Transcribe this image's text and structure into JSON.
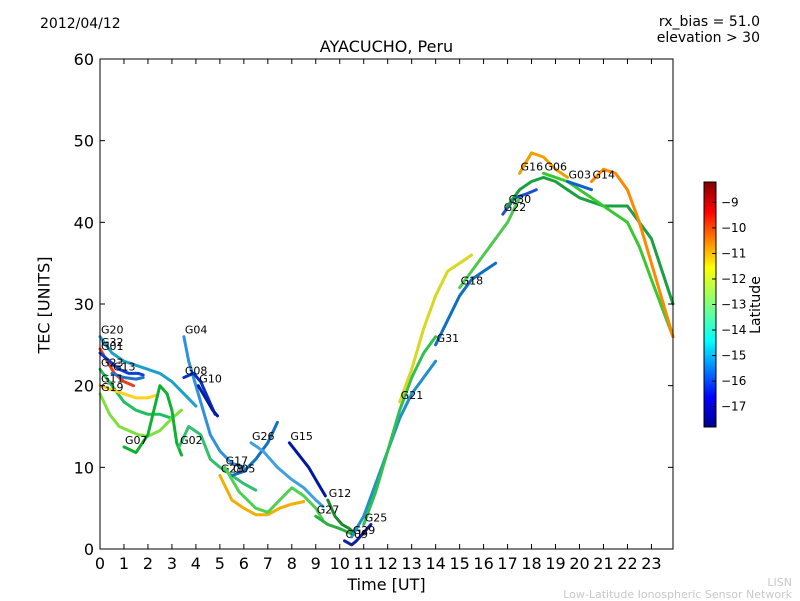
{
  "header": {
    "date": "2012/04/12",
    "rx_bias": "rx_bias = 51.0",
    "elevation": "elevation > 30",
    "footer_line1": "LISN",
    "footer_line2": "Low-Latitude Ionospheric Sensor Network"
  },
  "chart_data": {
    "type": "line",
    "title": "AYACUCHO, Peru",
    "xlabel": "Time [UT]",
    "ylabel": "TEC [UNITS]",
    "xlim": [
      0,
      23.9
    ],
    "ylim": [
      0,
      60
    ],
    "xticks": [
      0,
      1,
      2,
      3,
      4,
      5,
      6,
      7,
      8,
      9,
      10,
      11,
      12,
      13,
      14,
      15,
      16,
      17,
      18,
      19,
      20,
      21,
      22,
      23
    ],
    "yticks": [
      0,
      10,
      20,
      30,
      40,
      50,
      60
    ],
    "grid": false,
    "colorbar": {
      "label": "Latitude",
      "range": [
        -17.8,
        -8.2
      ],
      "ticks": [
        -9,
        -10,
        -11,
        -12,
        -13,
        -14,
        -15,
        -16,
        -17
      ],
      "colormap": [
        "#00008f",
        "#0000ff",
        "#0080ff",
        "#00ffff",
        "#80ff80",
        "#ffff00",
        "#ff8000",
        "#ff0000",
        "#800000"
      ]
    },
    "series": [
      {
        "name": "G20",
        "color": "#1fa0c8",
        "points": [
          [
            0,
            26
          ],
          [
            0.5,
            24
          ],
          [
            1,
            23
          ],
          [
            1.5,
            22.5
          ],
          [
            2,
            22
          ],
          [
            2.5,
            21.5
          ],
          [
            3,
            20.5
          ],
          [
            3.5,
            19
          ],
          [
            4,
            17.5
          ]
        ]
      },
      {
        "name": "G32",
        "color": "#e8401a",
        "points": [
          [
            0,
            24.5
          ],
          [
            0.3,
            23
          ],
          [
            0.6,
            21.5
          ],
          [
            1,
            20.5
          ],
          [
            1.4,
            20
          ]
        ]
      },
      {
        "name": "G01",
        "color": "#1040d0",
        "points": [
          [
            0,
            24
          ],
          [
            0.4,
            23
          ],
          [
            0.8,
            22
          ],
          [
            1.2,
            21.5
          ],
          [
            1.6,
            21.5
          ],
          [
            1.8,
            21.3
          ]
        ]
      },
      {
        "name": "G23",
        "color": "#20c060",
        "points": [
          [
            0,
            22
          ],
          [
            0.5,
            20
          ],
          [
            1,
            18
          ],
          [
            1.5,
            17
          ],
          [
            2,
            16.5
          ],
          [
            2.5,
            16.5
          ],
          [
            3,
            16
          ]
        ]
      },
      {
        "name": "G13",
        "color": "#2070d0",
        "points": [
          [
            0.5,
            21.5
          ],
          [
            1,
            21
          ],
          [
            1.5,
            20.8
          ],
          [
            1.8,
            21
          ]
        ]
      },
      {
        "name": "G11",
        "color": "#ffd020",
        "points": [
          [
            0,
            20
          ],
          [
            0.5,
            19.5
          ],
          [
            1,
            19
          ],
          [
            1.5,
            18.5
          ],
          [
            2,
            18.5
          ],
          [
            2.3,
            18.8
          ]
        ]
      },
      {
        "name": "G19",
        "color": "#7ee040",
        "points": [
          [
            0,
            19
          ],
          [
            0.4,
            16.5
          ],
          [
            0.8,
            15
          ],
          [
            1.2,
            14.5
          ],
          [
            1.6,
            14
          ],
          [
            2,
            13.8
          ],
          [
            2.5,
            14.5
          ],
          [
            3,
            16
          ],
          [
            3.4,
            17
          ]
        ]
      },
      {
        "name": "G07",
        "color": "#10b030",
        "points": [
          [
            1,
            12.5
          ],
          [
            1.5,
            11.8
          ],
          [
            2,
            14
          ],
          [
            2.5,
            20
          ],
          [
            2.8,
            19
          ],
          [
            3,
            17
          ],
          [
            3.2,
            13
          ],
          [
            3.4,
            11.5
          ]
        ]
      },
      {
        "name": "G04",
        "color": "#3090e0",
        "points": [
          [
            3.5,
            26
          ],
          [
            3.7,
            23
          ],
          [
            4,
            20
          ],
          [
            4.3,
            17
          ],
          [
            4.6,
            14
          ],
          [
            5,
            12
          ],
          [
            5.5,
            10.5
          ],
          [
            6,
            10
          ]
        ]
      },
      {
        "name": "G08",
        "color": "#0a30c0",
        "points": [
          [
            3.5,
            21
          ],
          [
            3.9,
            21.5
          ],
          [
            4.2,
            20.5
          ],
          [
            4.5,
            18.5
          ],
          [
            4.8,
            16.5
          ]
        ]
      },
      {
        "name": "G10",
        "color": "#0020a0",
        "points": [
          [
            4.1,
            20
          ],
          [
            4.4,
            18.5
          ],
          [
            4.7,
            17
          ],
          [
            4.9,
            16.3
          ]
        ]
      },
      {
        "name": "G02",
        "color": "#30c070",
        "points": [
          [
            3.3,
            12.5
          ],
          [
            3.7,
            15
          ],
          [
            4.2,
            14
          ],
          [
            4.6,
            11
          ],
          [
            5,
            10
          ],
          [
            5.5,
            9
          ],
          [
            6,
            8
          ],
          [
            6.5,
            7.2
          ]
        ]
      },
      {
        "name": "G05",
        "color": "#1070c8",
        "points": [
          [
            5.5,
            9
          ],
          [
            6,
            9.5
          ],
          [
            6.5,
            11
          ],
          [
            7,
            13
          ],
          [
            7.4,
            15.5
          ]
        ]
      },
      {
        "name": "G28",
        "color": "#f0b000",
        "points": [
          [
            5,
            9
          ],
          [
            5.5,
            6
          ],
          [
            6,
            5
          ],
          [
            6.5,
            4.2
          ],
          [
            7,
            4.2
          ],
          [
            7.5,
            5
          ],
          [
            8,
            5.5
          ],
          [
            8.5,
            5.8
          ]
        ]
      },
      {
        "name": "G26",
        "color": "#40a0e0",
        "points": [
          [
            6.3,
            13
          ],
          [
            6.8,
            12
          ],
          [
            7.4,
            10
          ],
          [
            8,
            8.5
          ],
          [
            8.5,
            7.5
          ],
          [
            9,
            6
          ],
          [
            9.3,
            5.2
          ]
        ]
      },
      {
        "name": "G17",
        "color": "#50d050",
        "points": [
          [
            5.2,
            10
          ],
          [
            5.8,
            7
          ],
          [
            6.5,
            5
          ],
          [
            7,
            4.5
          ],
          [
            7.5,
            6
          ],
          [
            8,
            7.5
          ],
          [
            8.5,
            6.5
          ],
          [
            9,
            5
          ],
          [
            9.3,
            3.5
          ]
        ]
      },
      {
        "name": "G15",
        "color": "#0018a0",
        "points": [
          [
            7.9,
            13
          ],
          [
            8.3,
            11.5
          ],
          [
            8.7,
            10
          ],
          [
            9.1,
            8
          ],
          [
            9.4,
            6.5
          ]
        ]
      },
      {
        "name": "G12",
        "color": "#1a8a2a",
        "points": [
          [
            9.5,
            6
          ],
          [
            9.8,
            4
          ],
          [
            10.1,
            3
          ],
          [
            10.4,
            2.5
          ],
          [
            10.6,
            2
          ]
        ]
      },
      {
        "name": "G27",
        "color": "#28b040",
        "points": [
          [
            9,
            4
          ],
          [
            9.5,
            3
          ],
          [
            10,
            2.5
          ],
          [
            10.4,
            2
          ],
          [
            10.6,
            1.8
          ]
        ]
      },
      {
        "name": "G09",
        "color": "#1020a0",
        "points": [
          [
            10.2,
            1
          ],
          [
            10.5,
            0.5
          ],
          [
            10.7,
            1
          ],
          [
            11,
            2
          ],
          [
            11.3,
            3
          ]
        ]
      },
      {
        "name": "G29",
        "color": "#2090c8",
        "points": [
          [
            10.5,
            1.5
          ],
          [
            11,
            4
          ],
          [
            11.5,
            8
          ],
          [
            12,
            12
          ],
          [
            12.5,
            16
          ],
          [
            13,
            19
          ],
          [
            13.5,
            21
          ],
          [
            14,
            23
          ]
        ]
      },
      {
        "name": "G25",
        "color": "#30c050",
        "points": [
          [
            11,
            3
          ],
          [
            11.5,
            7
          ],
          [
            12,
            12
          ],
          [
            12.5,
            17
          ],
          [
            13,
            21
          ],
          [
            13.5,
            24
          ],
          [
            14,
            26
          ]
        ]
      },
      {
        "name": "G21",
        "color": "#d8d820",
        "points": [
          [
            12.5,
            18
          ],
          [
            13,
            22
          ],
          [
            13.5,
            27
          ],
          [
            14,
            31
          ],
          [
            14.5,
            34
          ],
          [
            15,
            35
          ],
          [
            15.5,
            36
          ]
        ]
      },
      {
        "name": "G31",
        "color": "#1070c0",
        "points": [
          [
            14,
            25
          ],
          [
            14.5,
            28
          ],
          [
            15,
            31
          ],
          [
            15.5,
            33
          ],
          [
            16,
            34
          ],
          [
            16.5,
            35
          ]
        ]
      },
      {
        "name": "G18",
        "color": "#50c850",
        "points": [
          [
            15,
            32
          ],
          [
            15.5,
            34
          ],
          [
            16,
            36
          ],
          [
            16.5,
            38
          ],
          [
            17,
            40
          ],
          [
            17.5,
            43
          ]
        ]
      },
      {
        "name": "G22",
        "color": "#2050d0",
        "points": [
          [
            16.8,
            41
          ],
          [
            17.3,
            43
          ],
          [
            17.8,
            43.5
          ],
          [
            18.2,
            44
          ]
        ]
      },
      {
        "name": "G30",
        "color": "#1aa040",
        "points": [
          [
            17,
            42
          ],
          [
            17.5,
            44
          ],
          [
            18,
            45
          ],
          [
            18.5,
            45.5
          ],
          [
            19,
            45
          ],
          [
            19.5,
            44
          ],
          [
            20,
            43
          ],
          [
            21,
            42
          ],
          [
            22,
            42
          ],
          [
            23,
            38
          ],
          [
            23.9,
            30
          ]
        ]
      },
      {
        "name": "G16",
        "color": "#f0a000",
        "points": [
          [
            17.5,
            46
          ],
          [
            18,
            48.5
          ],
          [
            18.5,
            48
          ],
          [
            19,
            46.5
          ],
          [
            19.5,
            45.5
          ]
        ]
      },
      {
        "name": "G06",
        "color": "#38c830",
        "points": [
          [
            18.5,
            46
          ],
          [
            19,
            45.5
          ],
          [
            19.5,
            45
          ],
          [
            20,
            44
          ],
          [
            20.5,
            43
          ],
          [
            21,
            42
          ],
          [
            21.5,
            41
          ],
          [
            22,
            40
          ],
          [
            22.5,
            37
          ],
          [
            23,
            33
          ],
          [
            23.9,
            26
          ]
        ]
      },
      {
        "name": "G03",
        "color": "#1060d0",
        "points": [
          [
            19.5,
            45
          ],
          [
            20,
            44.5
          ],
          [
            20.5,
            44
          ]
        ]
      },
      {
        "name": "G14",
        "color": "#ff8800",
        "points": [
          [
            20.5,
            45
          ],
          [
            21,
            46.5
          ],
          [
            21.5,
            46
          ],
          [
            22,
            44
          ],
          [
            22.5,
            40
          ],
          [
            23,
            35
          ],
          [
            23.5,
            30
          ],
          [
            23.9,
            26
          ]
        ]
      }
    ]
  }
}
